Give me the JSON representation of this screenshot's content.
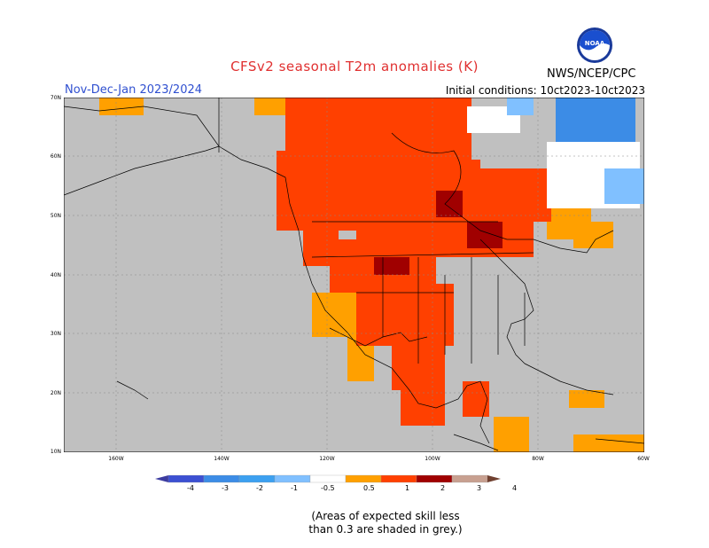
{
  "header": {
    "title": "CFSv2 seasonal T2m anomalies (K)",
    "period": "Nov-Dec-Jan 2023/2024",
    "initial_conditions": "Initial conditions: 10ct2023-10ct2023",
    "agency": "NWS/NCEP/CPC"
  },
  "map": {
    "lat_labels": [
      "70N",
      "60N",
      "50N",
      "40N",
      "30N",
      "20N",
      "10N"
    ],
    "lon_labels": [
      "160W",
      "140W",
      "120W",
      "100W",
      "80W",
      "60W"
    ],
    "colors": {
      "no_skill": "#c0c0c0",
      "a05": "#ffa000",
      "a1": "#ff4000",
      "a2": "#a00000",
      "a3": "#c8a090",
      "n05": "#ffffff",
      "n1": "#80c0ff",
      "n2": "#3c8ce6",
      "land_lines": "#000000"
    }
  },
  "legend": {
    "labels": [
      "-4",
      "-3",
      "-2",
      "-1",
      "-0.5",
      "0.5",
      "1",
      "2",
      "3",
      "4"
    ],
    "colors": [
      "#3c3ca0",
      "#3c50d2",
      "#3c8ce6",
      "#3ca0f0",
      "#80c0ff",
      "#ffffff",
      "#ffa000",
      "#ff4000",
      "#a00000",
      "#c8a090",
      "#704030"
    ]
  },
  "footnote": {
    "line1": "(Areas of expected skill less",
    "line2": "than 0.3 are shaded in grey.)"
  }
}
